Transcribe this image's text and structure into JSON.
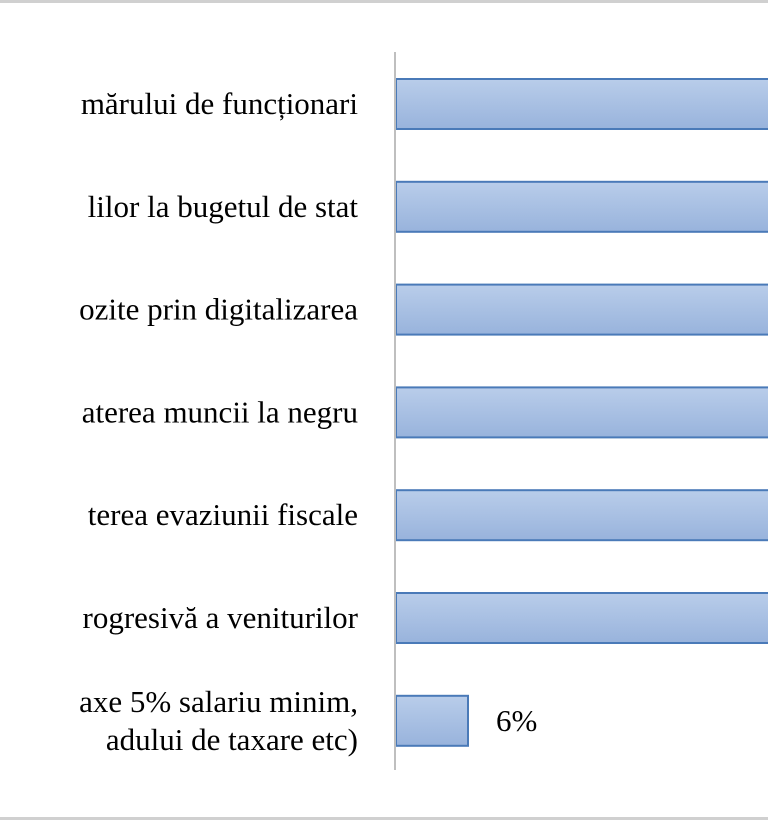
{
  "chart_data": {
    "type": "bar",
    "orientation": "horizontal",
    "categories": [
      [
        "mărului de funcționari"
      ],
      [
        "lilor la bugetul de stat"
      ],
      [
        "ozite prin digitalizarea"
      ],
      [
        "aterea muncii la negru"
      ],
      [
        "terea evaziunii fiscale"
      ],
      [
        "rogresivă a veniturilor"
      ],
      [
        "axe 5% salariu minim,",
        "adului de taxare etc)"
      ]
    ],
    "values": [
      null,
      null,
      null,
      null,
      null,
      null,
      6
    ],
    "value_labels": [
      "",
      "",
      "",
      "",
      "",
      "",
      "6%"
    ],
    "unit": "%",
    "bar_color": "#a9c0e3",
    "bar_border_color": "#4a7ab8",
    "axis_color": "#bfbfbf",
    "frame_color": "#d0d0d0"
  }
}
